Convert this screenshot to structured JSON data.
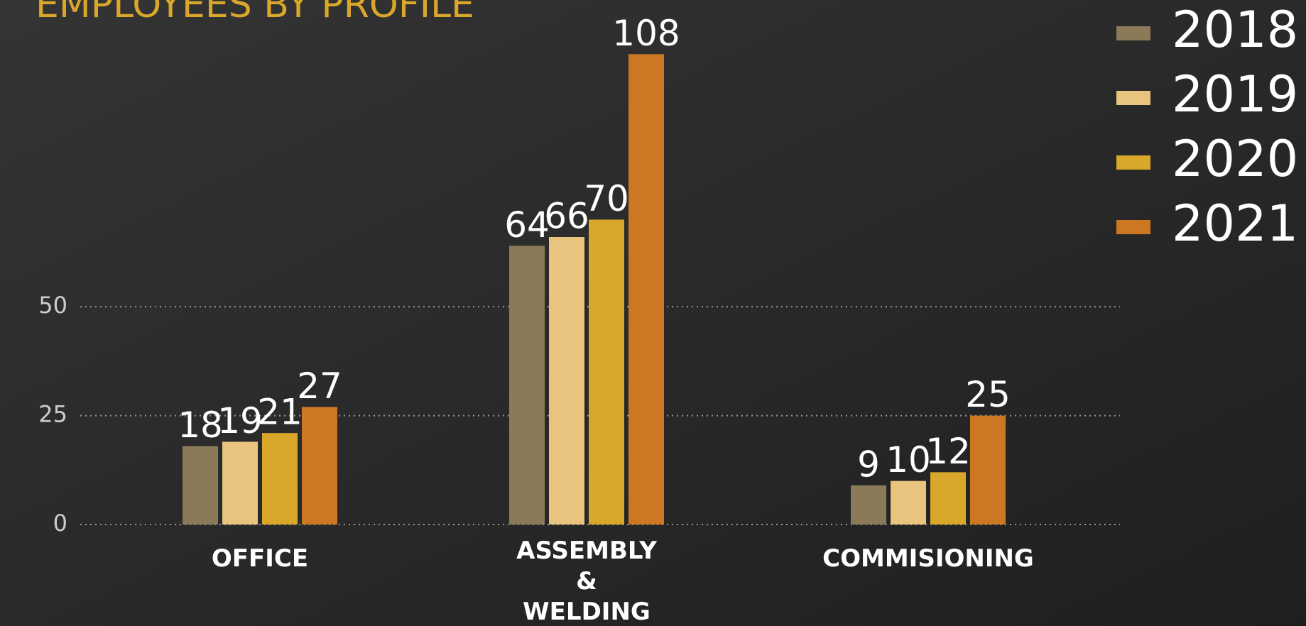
{
  "chart_data": {
    "type": "bar",
    "title": "EMPLOYEES BY PROFILE",
    "categories": [
      "OFFICE",
      "ASSEMBLY\n&\nWELDING",
      "COMMISIONING"
    ],
    "series": [
      {
        "name": "2018",
        "color": "#8b7a57",
        "values": [
          18,
          64,
          9
        ]
      },
      {
        "name": "2019",
        "color": "#e8c47e",
        "values": [
          19,
          66,
          10
        ]
      },
      {
        "name": "2020",
        "color": "#d9a72a",
        "values": [
          21,
          70,
          12
        ]
      },
      {
        "name": "2021",
        "color": "#cc7722",
        "values": [
          27,
          108,
          25
        ]
      }
    ],
    "ylim": [
      0,
      110
    ],
    "yticks": [
      0,
      25,
      50
    ],
    "grid": true,
    "legend": "top-right"
  }
}
